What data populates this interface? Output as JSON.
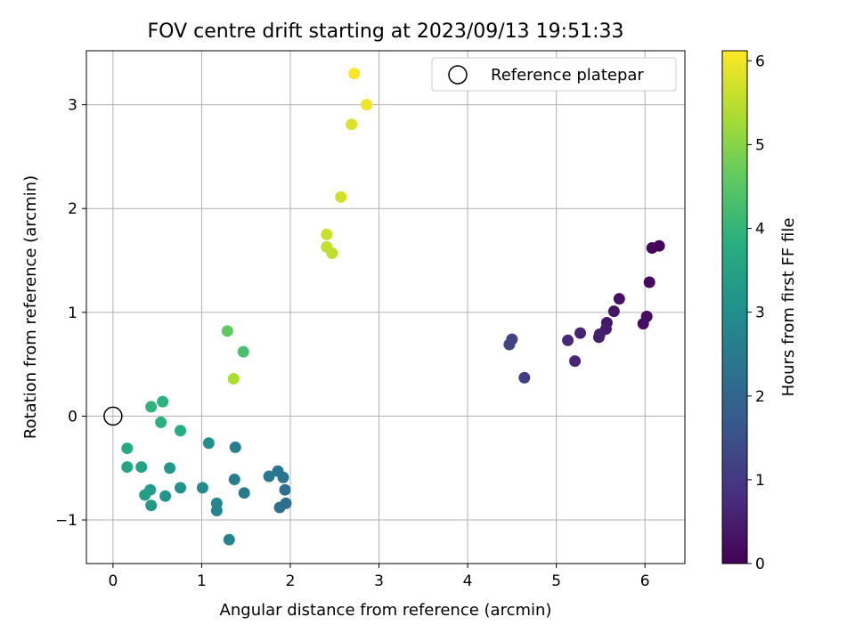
{
  "chart_data": {
    "type": "scatter",
    "title": "FOV centre drift starting at 2023/09/13 19:51:33",
    "xlabel": "Angular distance from reference (arcmin)",
    "ylabel": "Rotation from reference (arcmin)",
    "xlim": [
      -0.3,
      6.45
    ],
    "ylim": [
      -1.42,
      3.52
    ],
    "xticks": [
      0,
      1,
      2,
      3,
      4,
      5,
      6
    ],
    "yticks": [
      -1,
      0,
      1,
      2,
      3
    ],
    "ytick_labels": [
      "−1",
      "0",
      "1",
      "2",
      "3"
    ],
    "grid": true,
    "legend": {
      "position": "top-right",
      "entries": [
        {
          "label": "Reference platepar",
          "marker": "open-circle"
        }
      ]
    },
    "colorbar": {
      "label": "Hours from first FF file",
      "colormap": "viridis",
      "range": [
        0,
        6.12
      ],
      "ticks": [
        0,
        1,
        2,
        3,
        4,
        5,
        6
      ]
    },
    "reference_point": {
      "x": 0,
      "y": 0
    },
    "points": [
      {
        "x": 6.16,
        "y": 1.64,
        "c": 0.05
      },
      {
        "x": 6.08,
        "y": 1.62,
        "c": 0.1
      },
      {
        "x": 6.05,
        "y": 1.29,
        "c": 0.15
      },
      {
        "x": 6.02,
        "y": 0.96,
        "c": 0.2
      },
      {
        "x": 5.98,
        "y": 0.89,
        "c": 0.25
      },
      {
        "x": 5.71,
        "y": 1.13,
        "c": 0.3
      },
      {
        "x": 5.65,
        "y": 1.01,
        "c": 0.35
      },
      {
        "x": 5.57,
        "y": 0.9,
        "c": 0.4
      },
      {
        "x": 5.56,
        "y": 0.84,
        "c": 0.45
      },
      {
        "x": 5.49,
        "y": 0.79,
        "c": 0.5
      },
      {
        "x": 5.48,
        "y": 0.76,
        "c": 0.55
      },
      {
        "x": 5.27,
        "y": 0.8,
        "c": 0.6
      },
      {
        "x": 5.21,
        "y": 0.53,
        "c": 0.65
      },
      {
        "x": 5.13,
        "y": 0.73,
        "c": 0.7
      },
      {
        "x": 4.64,
        "y": 0.37,
        "c": 1.1
      },
      {
        "x": 4.5,
        "y": 0.74,
        "c": 1.2
      },
      {
        "x": 4.47,
        "y": 0.69,
        "c": 1.25
      },
      {
        "x": 1.95,
        "y": -0.84,
        "c": 2.2
      },
      {
        "x": 1.88,
        "y": -0.88,
        "c": 2.25
      },
      {
        "x": 1.94,
        "y": -0.71,
        "c": 2.3
      },
      {
        "x": 1.92,
        "y": -0.59,
        "c": 2.35
      },
      {
        "x": 1.86,
        "y": -0.53,
        "c": 2.4
      },
      {
        "x": 1.76,
        "y": -0.58,
        "c": 2.45
      },
      {
        "x": 1.48,
        "y": -0.74,
        "c": 2.5
      },
      {
        "x": 1.37,
        "y": -0.61,
        "c": 2.55
      },
      {
        "x": 1.38,
        "y": -0.3,
        "c": 2.6
      },
      {
        "x": 1.31,
        "y": -1.19,
        "c": 2.7
      },
      {
        "x": 1.17,
        "y": -0.91,
        "c": 2.75
      },
      {
        "x": 1.17,
        "y": -0.84,
        "c": 2.8
      },
      {
        "x": 1.01,
        "y": -0.69,
        "c": 2.9
      },
      {
        "x": 1.08,
        "y": -0.26,
        "c": 3.0
      },
      {
        "x": 0.76,
        "y": -0.69,
        "c": 3.1
      },
      {
        "x": 0.59,
        "y": -0.77,
        "c": 3.2
      },
      {
        "x": 0.64,
        "y": -0.5,
        "c": 3.25
      },
      {
        "x": 0.43,
        "y": -0.86,
        "c": 3.3
      },
      {
        "x": 0.42,
        "y": -0.71,
        "c": 3.35
      },
      {
        "x": 0.36,
        "y": -0.76,
        "c": 3.4
      },
      {
        "x": 0.32,
        "y": -0.49,
        "c": 3.5
      },
      {
        "x": 0.16,
        "y": -0.49,
        "c": 3.6
      },
      {
        "x": 0.16,
        "y": -0.31,
        "c": 3.7
      },
      {
        "x": 0.76,
        "y": -0.14,
        "c": 3.8
      },
      {
        "x": 0.54,
        "y": -0.06,
        "c": 3.85
      },
      {
        "x": 0.56,
        "y": 0.14,
        "c": 3.9
      },
      {
        "x": 0.43,
        "y": 0.09,
        "c": 3.95
      },
      {
        "x": 1.47,
        "y": 0.62,
        "c": 4.3
      },
      {
        "x": 1.29,
        "y": 0.82,
        "c": 4.6
      },
      {
        "x": 1.36,
        "y": 0.36,
        "c": 5.35
      },
      {
        "x": 2.47,
        "y": 1.57,
        "c": 5.5
      },
      {
        "x": 2.41,
        "y": 1.63,
        "c": 5.55
      },
      {
        "x": 2.41,
        "y": 1.75,
        "c": 5.6
      },
      {
        "x": 2.57,
        "y": 2.11,
        "c": 5.7
      },
      {
        "x": 2.69,
        "y": 2.81,
        "c": 5.8
      },
      {
        "x": 2.86,
        "y": 3.0,
        "c": 5.98
      },
      {
        "x": 2.72,
        "y": 3.3,
        "c": 6.08
      }
    ]
  }
}
